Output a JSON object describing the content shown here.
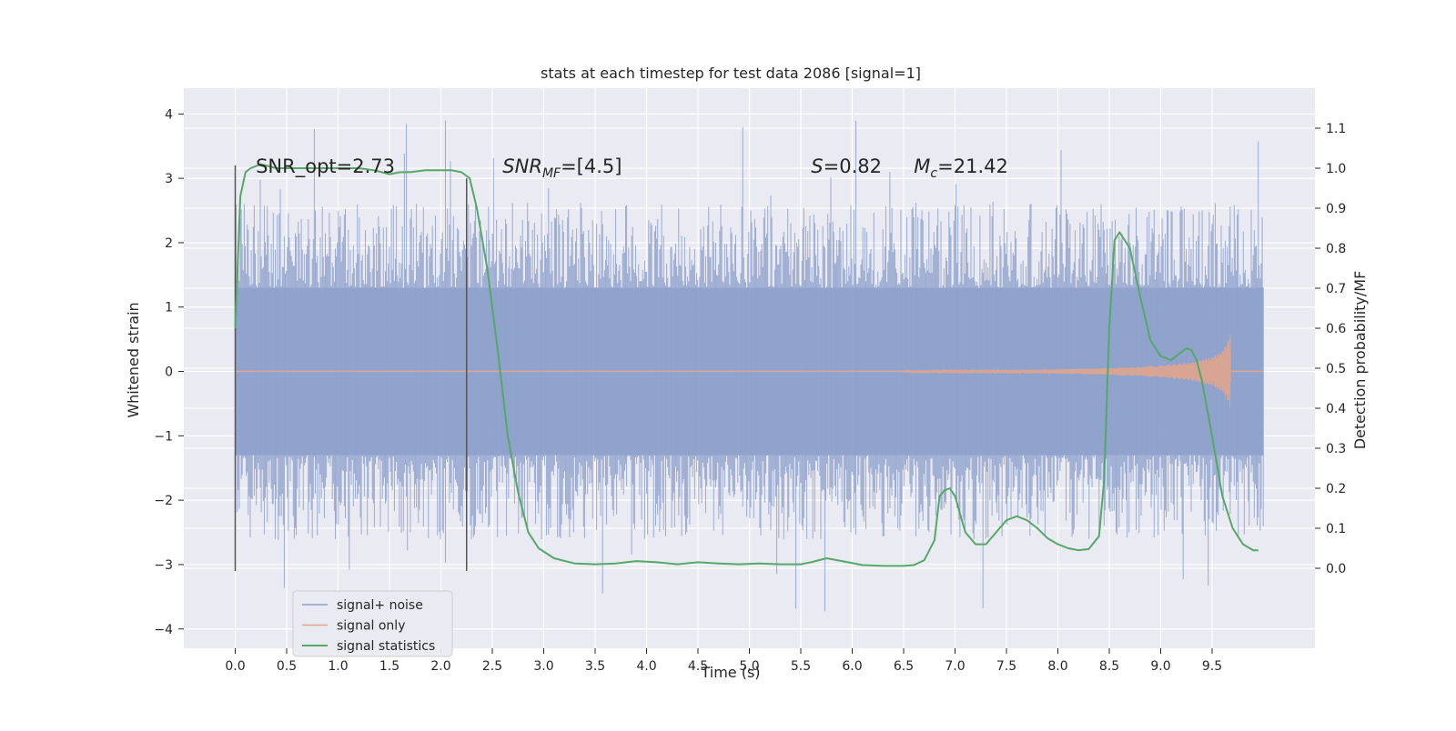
{
  "chart_data": {
    "type": "line",
    "title": "stats at each timestep for test data 2086 [signal=1]",
    "xlabel": "Time (s)",
    "ylabel_left": "Whitened strain",
    "ylabel_right": "Detection probability/MF",
    "xlim": [
      -0.5,
      10.5
    ],
    "ylim_left": [
      -4.3,
      4.4
    ],
    "ylim_right": [
      -0.2,
      1.2
    ],
    "x_ticks": [
      0.0,
      0.5,
      1.0,
      1.5,
      2.0,
      2.5,
      3.0,
      3.5,
      4.0,
      4.5,
      5.0,
      5.5,
      6.0,
      6.5,
      7.0,
      7.5,
      8.0,
      8.5,
      9.0,
      9.5
    ],
    "x_tick_labels": [
      "0.0",
      "0.5",
      "1.0",
      "1.5",
      "2.0",
      "2.5",
      "3.0",
      "3.5",
      "4.0",
      "4.5",
      "5.0",
      "5.5",
      "6.0",
      "6.5",
      "7.0",
      "7.5",
      "8.0",
      "8.5",
      "9.0",
      "9.5"
    ],
    "y_left_ticks": [
      -4,
      -3,
      -2,
      -1,
      0,
      1,
      2,
      3,
      4
    ],
    "y_left_tick_labels": [
      "−4",
      "−3",
      "−2",
      "−1",
      "0",
      "1",
      "2",
      "3",
      "4"
    ],
    "y_right_ticks": [
      0.0,
      0.1,
      0.2,
      0.3,
      0.4,
      0.5,
      0.6,
      0.7,
      0.8,
      0.9,
      1.0,
      1.1
    ],
    "y_right_tick_labels": [
      "0.0",
      "0.1",
      "0.2",
      "0.3",
      "0.4",
      "0.5",
      "0.6",
      "0.7",
      "0.8",
      "0.9",
      "1.0",
      "1.1"
    ],
    "grid": true,
    "legend_position": "lower-left",
    "colors": {
      "noise": "#8da0cb",
      "signal": "#e0a58e",
      "stats": "#55a868",
      "plot_bg": "#eaeaf2",
      "grid": "#ffffff",
      "vline": "#555555"
    },
    "series": [
      {
        "name": "signal+ noise",
        "kind": "noise-band",
        "x_range": [
          0.0,
          10.0
        ],
        "core_amplitude": 1.3,
        "typical_peak": 2.4,
        "max_peak": 3.9,
        "min_trough": -4.0
      },
      {
        "name": "signal only",
        "kind": "chirp",
        "x": [
          6.5,
          7.0,
          7.5,
          8.0,
          8.5,
          9.0,
          9.3,
          9.5,
          9.6,
          9.65,
          9.68
        ],
        "envelope": [
          0.01,
          0.015,
          0.02,
          0.03,
          0.05,
          0.09,
          0.14,
          0.22,
          0.32,
          0.45,
          0.6
        ]
      },
      {
        "name": "signal statistics",
        "kind": "line",
        "x": [
          0.0,
          0.05,
          0.1,
          0.15,
          0.25,
          0.4,
          0.6,
          0.8,
          1.0,
          1.2,
          1.35,
          1.5,
          1.6,
          1.7,
          1.85,
          2.0,
          2.1,
          2.2,
          2.28,
          2.35,
          2.45,
          2.55,
          2.65,
          2.75,
          2.85,
          2.95,
          3.1,
          3.3,
          3.5,
          3.7,
          3.9,
          4.1,
          4.3,
          4.5,
          4.7,
          4.9,
          5.1,
          5.3,
          5.5,
          5.6,
          5.75,
          5.9,
          6.1,
          6.3,
          6.5,
          6.6,
          6.7,
          6.8,
          6.85,
          6.9,
          6.95,
          7.0,
          7.1,
          7.2,
          7.3,
          7.4,
          7.5,
          7.6,
          7.7,
          7.8,
          7.9,
          8.0,
          8.1,
          8.2,
          8.3,
          8.4,
          8.45,
          8.5,
          8.55,
          8.6,
          8.7,
          8.8,
          8.9,
          9.0,
          9.1,
          9.2,
          9.25,
          9.3,
          9.35,
          9.4,
          9.5,
          9.6,
          9.7,
          9.8,
          9.9,
          9.95
        ],
        "y": [
          0.6,
          0.93,
          0.99,
          1.0,
          1.01,
          1.0,
          1.0,
          1.0,
          1.0,
          1.0,
          0.995,
          0.985,
          0.99,
          0.99,
          0.995,
          0.995,
          0.995,
          0.99,
          0.975,
          0.9,
          0.75,
          0.55,
          0.33,
          0.19,
          0.09,
          0.05,
          0.025,
          0.012,
          0.01,
          0.012,
          0.018,
          0.015,
          0.01,
          0.015,
          0.012,
          0.01,
          0.012,
          0.01,
          0.01,
          0.015,
          0.025,
          0.018,
          0.008,
          0.006,
          0.006,
          0.008,
          0.02,
          0.07,
          0.18,
          0.195,
          0.2,
          0.18,
          0.09,
          0.06,
          0.06,
          0.09,
          0.12,
          0.13,
          0.12,
          0.1,
          0.075,
          0.06,
          0.05,
          0.045,
          0.048,
          0.08,
          0.22,
          0.6,
          0.82,
          0.84,
          0.8,
          0.68,
          0.57,
          0.53,
          0.52,
          0.54,
          0.55,
          0.545,
          0.52,
          0.47,
          0.33,
          0.18,
          0.1,
          0.06,
          0.045,
          0.045
        ]
      }
    ],
    "vertical_lines": [
      {
        "x": 0.0,
        "y_range": [
          -3.1,
          3.2
        ]
      },
      {
        "x": 2.25,
        "y_range": [
          -3.1,
          3.0
        ]
      }
    ],
    "annotations": [
      {
        "id": "snr-opt",
        "text": "SNR_opt=2.73",
        "x": 0.2,
        "y": 3.2
      },
      {
        "id": "snr-mf",
        "text_main": "SNR",
        "text_sub": "MF",
        "text_tail": "=[4.5]",
        "x": 2.6,
        "y": 3.2
      },
      {
        "id": "s-stat",
        "text_main": "S",
        "text_tail": "=0.82",
        "x": 5.6,
        "y": 3.2
      },
      {
        "id": "mc",
        "text_main": "M",
        "text_sub": "c",
        "text_tail": "=21.42",
        "x": 6.6,
        "y": 3.2
      }
    ],
    "legend": [
      {
        "label": "signal+ noise",
        "color_key": "noise"
      },
      {
        "label": "signal only",
        "color_key": "signal"
      },
      {
        "label": "signal statistics",
        "color_key": "stats"
      }
    ]
  }
}
